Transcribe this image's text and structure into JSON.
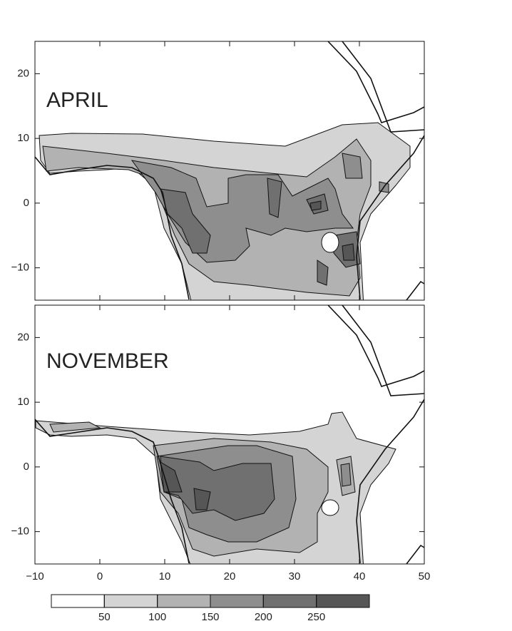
{
  "panels": [
    {
      "label": "APRIL"
    },
    {
      "label": "NOVEMBER"
    }
  ],
  "map": {
    "xlim": [
      -10,
      50
    ],
    "ylim": [
      -15,
      25
    ],
    "xticks": [
      {
        "value": -10,
        "label": "−10"
      },
      0,
      10,
      20,
      30,
      40,
      50
    ],
    "yticks": [
      {
        "value": -10,
        "label": "−10"
      },
      0,
      10,
      20
    ]
  },
  "colorbar": {
    "lim": [
      0,
      300
    ],
    "ticks": [
      50,
      100,
      150,
      200,
      250
    ],
    "colors": [
      "#ffffff",
      "#d4d4d4",
      "#b2b2b2",
      "#8e8e8e",
      "#707070",
      "#565656"
    ]
  }
}
